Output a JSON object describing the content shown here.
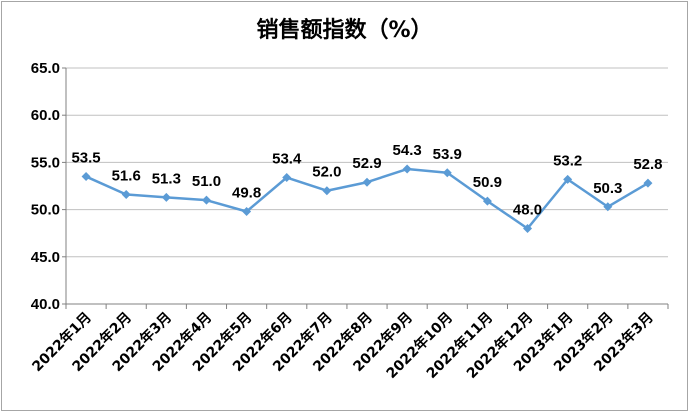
{
  "chart_data": {
    "type": "line",
    "title": "销售额指数（%）",
    "xlabel": "",
    "ylabel": "",
    "ylim": [
      40.0,
      65.0
    ],
    "yticks": [
      "40.0",
      "45.0",
      "50.0",
      "55.0",
      "60.0",
      "65.0"
    ],
    "grid": true,
    "categories": [
      "2022年1月",
      "2022年2月",
      "2022年3月",
      "2022年4月",
      "2022年5月",
      "2022年6月",
      "2022年7月",
      "2022年8月",
      "2022年9月",
      "2022年10月",
      "2022年11月",
      "2022年12月",
      "2023年1月",
      "2023年2月",
      "2023年3月"
    ],
    "values": [
      53.5,
      51.6,
      51.3,
      51.0,
      49.8,
      53.4,
      52.0,
      52.9,
      54.3,
      53.9,
      50.9,
      48.0,
      53.2,
      50.3,
      52.8
    ],
    "labels": [
      "53.5",
      "51.6",
      "51.3",
      "51.0",
      "49.8",
      "53.4",
      "52.0",
      "52.9",
      "54.3",
      "53.9",
      "50.9",
      "48.0",
      "53.2",
      "50.3",
      "52.8"
    ],
    "line_color": "#5b9bd5"
  }
}
